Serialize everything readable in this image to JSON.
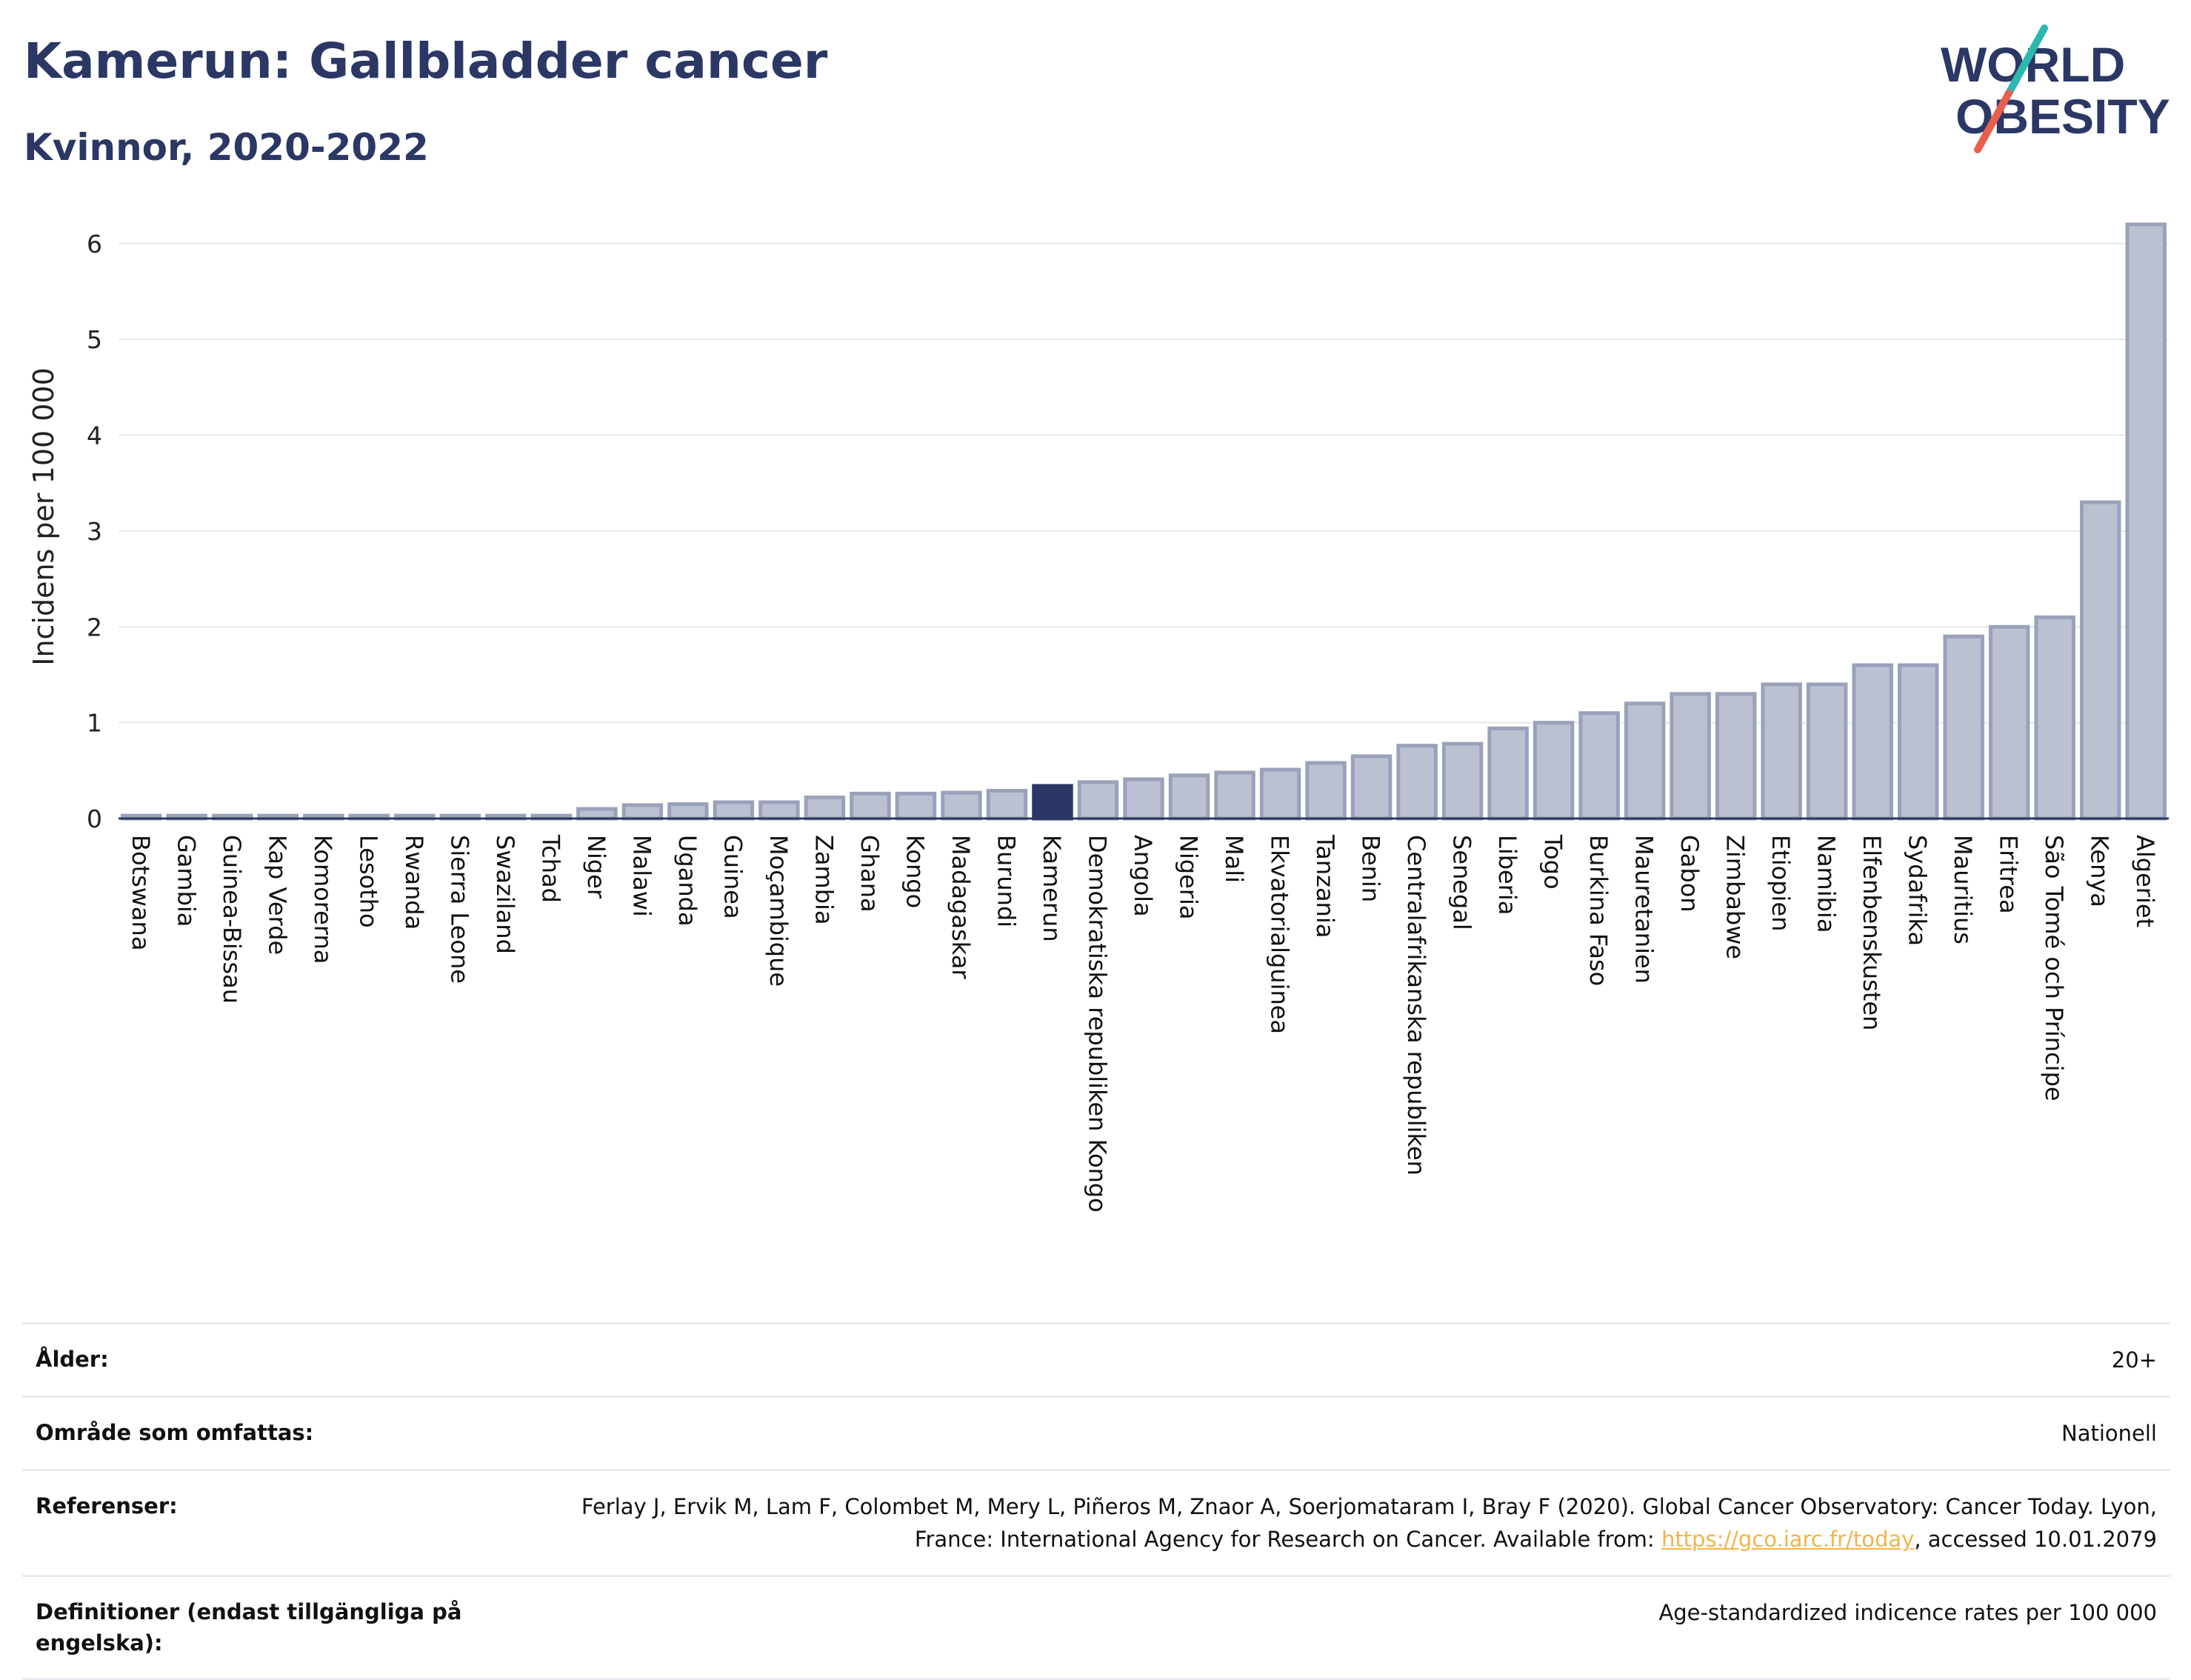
{
  "header": {
    "title": "Kamerun: Gallbladder cancer",
    "subtitle": "Kvinnor, 2020-2022"
  },
  "logo": {
    "line1": "WORLD",
    "line2": "OBESITY",
    "colors": {
      "text": "#2b3764",
      "slash_top": "#2bb8b0",
      "slash_bottom": "#e8604c"
    }
  },
  "colors": {
    "bar_fill": "#bcc1d1",
    "bar_stroke": "#9aa1ba",
    "highlight": "#2b3764",
    "grid": "#e6e8ef",
    "axis": "#2b3764"
  },
  "chart_data": {
    "type": "bar",
    "title": "Kamerun: Gallbladder cancer",
    "subtitle": "Kvinnor, 2020-2022",
    "xlabel": "",
    "ylabel": "Incidens per 100 000",
    "ylim": [
      0,
      6.3
    ],
    "yticks": [
      0,
      1,
      2,
      3,
      4,
      5,
      6
    ],
    "grid": true,
    "highlight": "Kamerun",
    "categories": [
      "Botswana",
      "Gambia",
      "Guinea-Bissau",
      "Kap Verde",
      "Komorerna",
      "Lesotho",
      "Rwanda",
      "Sierra Leone",
      "Swaziland",
      "Tchad",
      "Niger",
      "Malawi",
      "Uganda",
      "Guinea",
      "Moçambique",
      "Zambia",
      "Ghana",
      "Kongo",
      "Madagaskar",
      "Burundi",
      "Kamerun",
      "Demokratiska republiken Kongo",
      "Angola",
      "Nigeria",
      "Mali",
      "Ekvatorialguinea",
      "Tanzania",
      "Benin",
      "Centralafrikanska republiken",
      "Senegal",
      "Liberia",
      "Togo",
      "Burkina Faso",
      "Mauretanien",
      "Gabon",
      "Zimbabwe",
      "Etiopien",
      "Namibia",
      "Elfenbenskusten",
      "Sydafrika",
      "Mauritius",
      "Eritrea",
      "São Tomé och Príncipe",
      "Kenya",
      "Algeriet"
    ],
    "values": [
      0.03,
      0.03,
      0.03,
      0.03,
      0.03,
      0.03,
      0.03,
      0.03,
      0.03,
      0.03,
      0.1,
      0.14,
      0.15,
      0.17,
      0.17,
      0.22,
      0.26,
      0.26,
      0.27,
      0.29,
      0.34,
      0.38,
      0.41,
      0.45,
      0.48,
      0.51,
      0.58,
      0.65,
      0.76,
      0.78,
      0.94,
      1.0,
      1.1,
      1.2,
      1.3,
      1.3,
      1.4,
      1.4,
      1.6,
      1.6,
      1.9,
      2.0,
      2.1,
      3.3,
      6.2
    ]
  },
  "meta": {
    "age_label": "Ålder:",
    "age_value": "20+",
    "area_label": "Område som omfattas:",
    "area_value": "Nationell",
    "ref_label": "Referenser:",
    "ref_text_1": "Ferlay J, Ervik M, Lam F, Colombet M, Mery L, Piñeros M, Znaor A, Soerjomataram I, Bray F (2020). Global Cancer Observatory: Cancer Today. Lyon, France: International Agency for Research on Cancer. Available from: ",
    "ref_link": "https://gco.iarc.fr/today",
    "ref_text_2": ", accessed 10.01.2079",
    "def_label": "Definitioner (endast tillgängliga på engelska):",
    "def_value": "Age-standardized indicence rates per 100 000"
  }
}
